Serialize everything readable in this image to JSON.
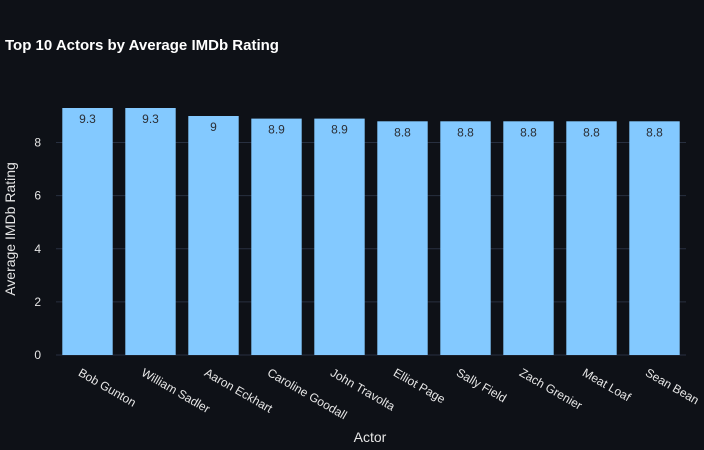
{
  "chart_data": {
    "type": "bar",
    "title": "Top 10 Actors by Average IMDb Rating",
    "xlabel": "Actor",
    "ylabel": "Average IMDb Rating",
    "categories": [
      "Bob Gunton",
      "William Sadler",
      "Aaron Eckhart",
      "Caroline Goodall",
      "John Travolta",
      "Elliot Page",
      "Sally Field",
      "Zach Grenier",
      "Meat Loaf",
      "Sean Bean"
    ],
    "values": [
      9.3,
      9.3,
      9,
      8.9,
      8.9,
      8.8,
      8.8,
      8.8,
      8.8,
      8.8
    ],
    "ylim": [
      0,
      9.3
    ],
    "yticks": [
      0,
      2,
      4,
      6,
      8
    ],
    "grid": true,
    "bar_color": "#83c9ff",
    "background": "#0e1117"
  }
}
